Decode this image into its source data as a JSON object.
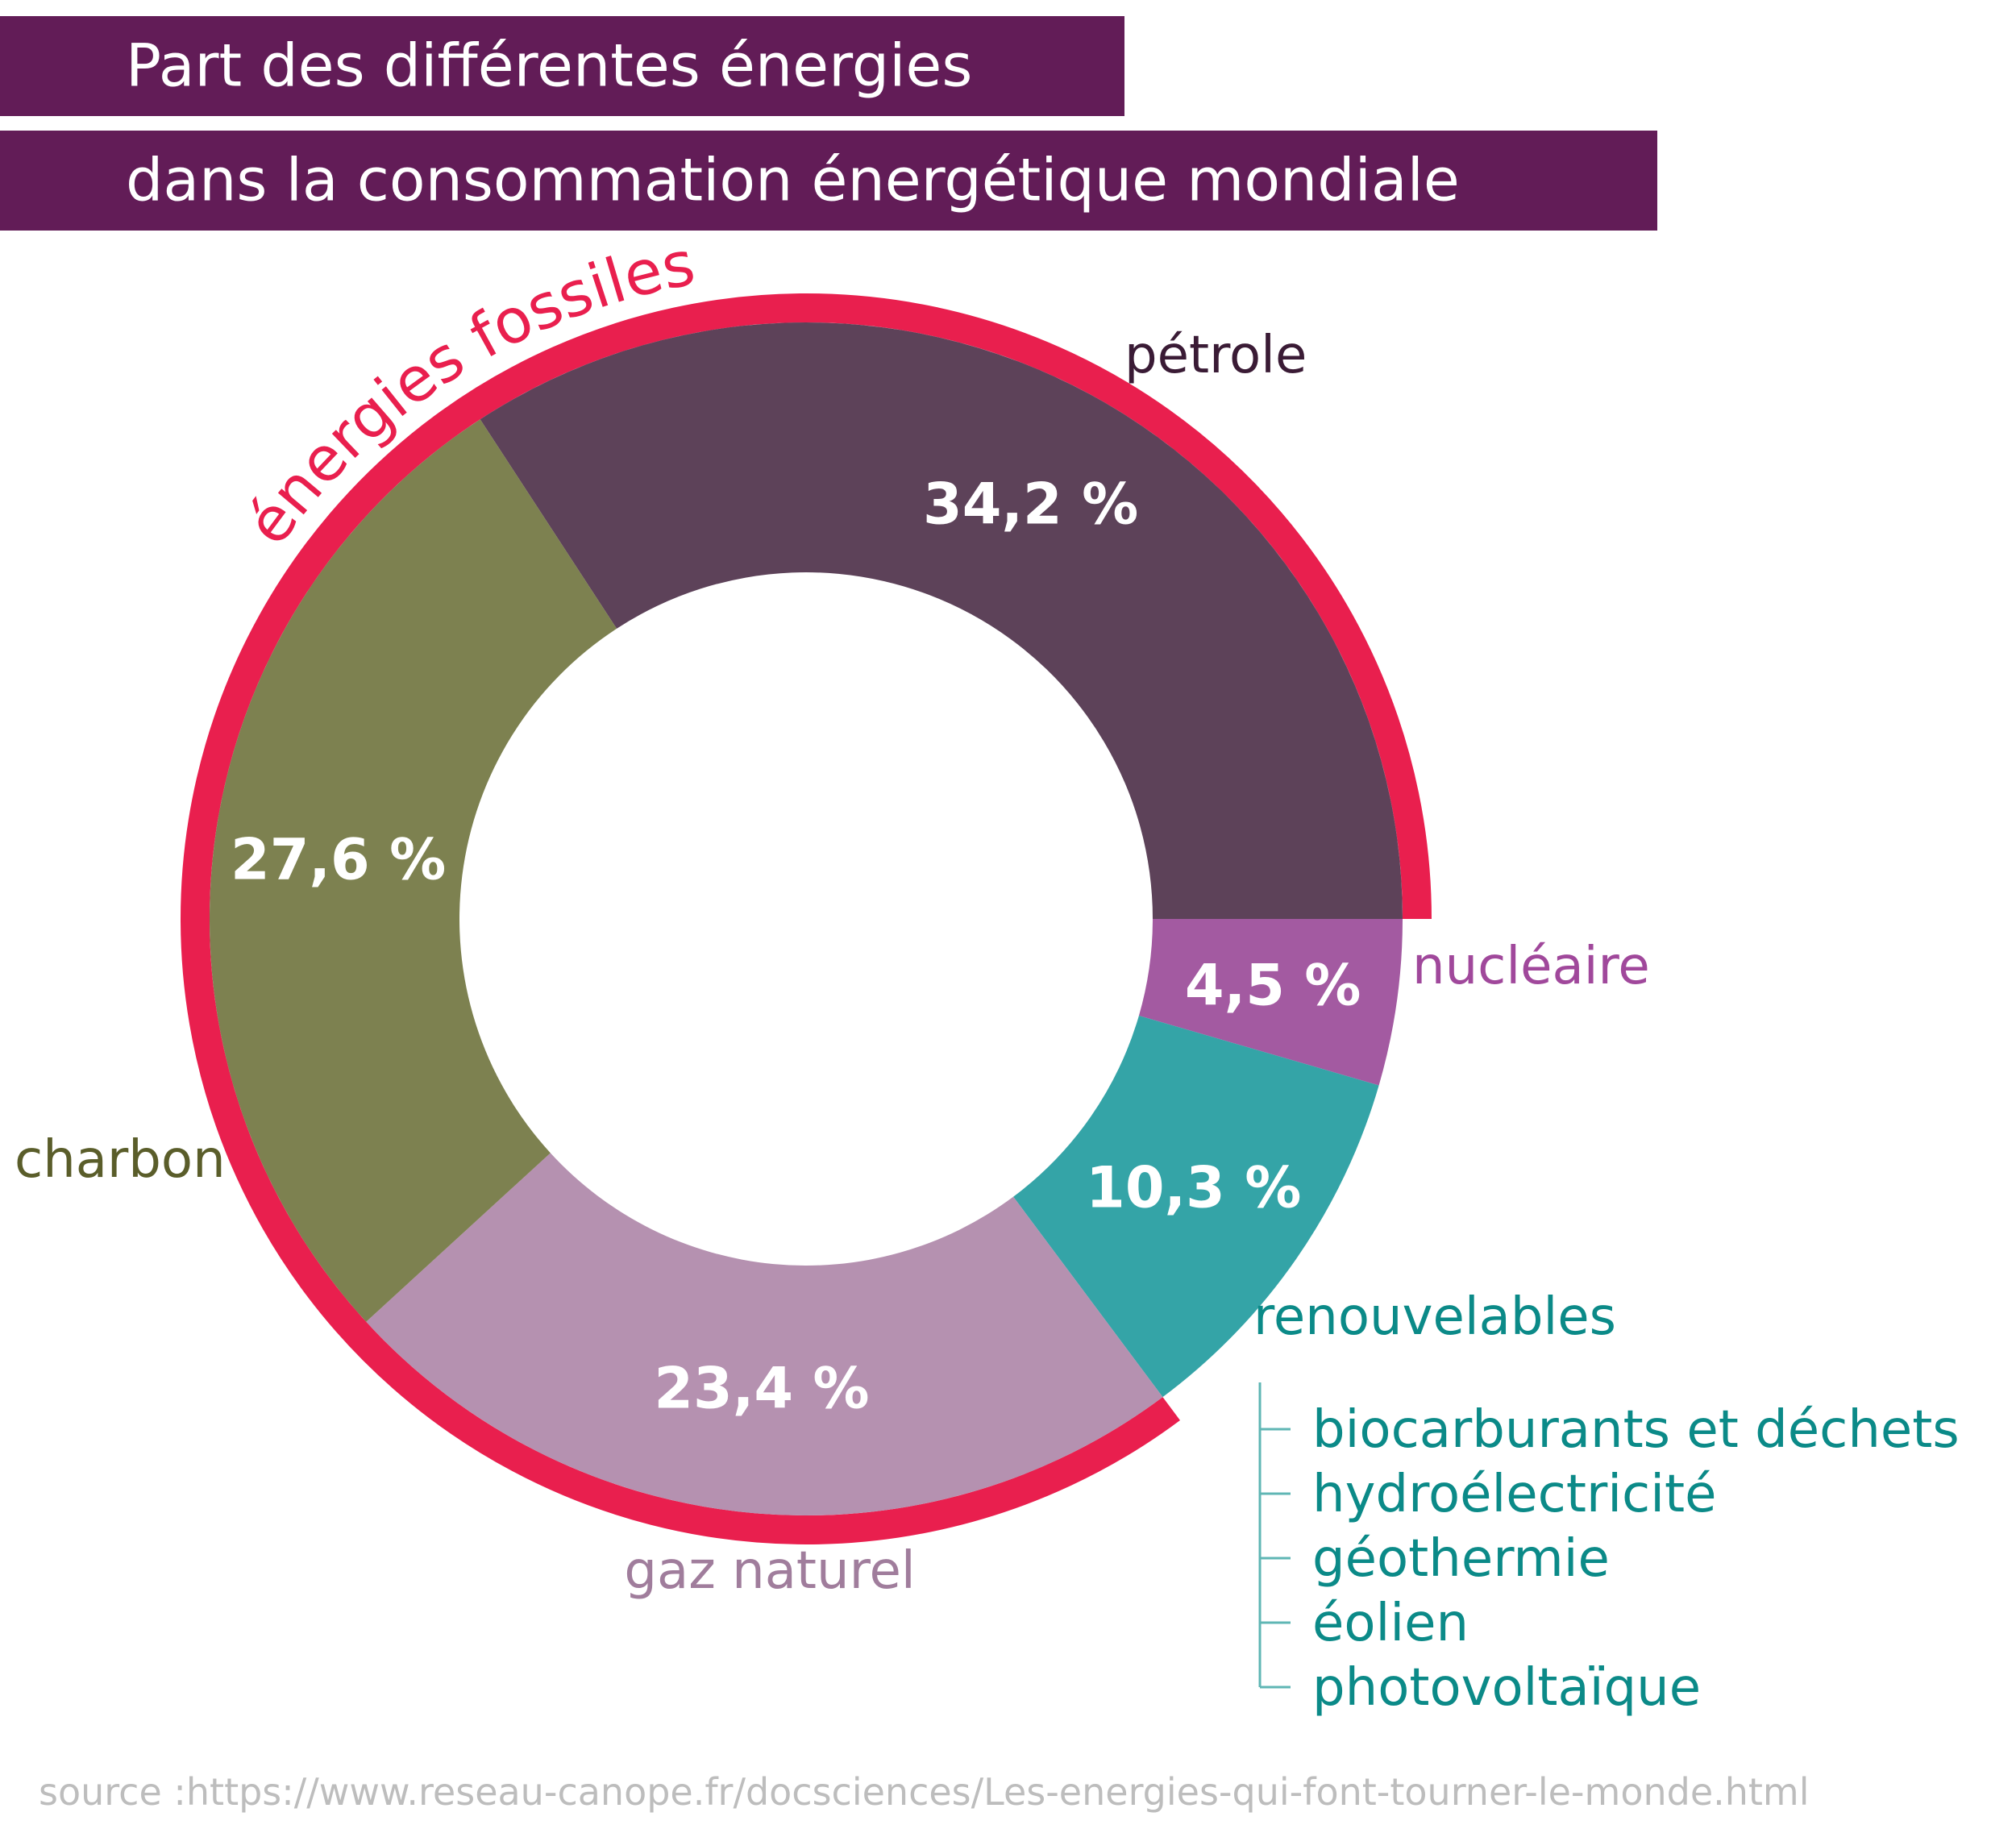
{
  "title": {
    "line1": "Part des différentes énergies",
    "line2": "dans la consommation énergétique mondiale"
  },
  "chart_data": {
    "type": "pie",
    "title": "Part des différentes énergies dans la consommation énergétique mondiale",
    "slices": [
      {
        "label": "pétrole",
        "value": 34.2,
        "value_label": "34,2 %",
        "color": "#5d4259",
        "label_color": "#3a1b35"
      },
      {
        "label": "nucléaire",
        "value": 4.5,
        "value_label": "4,5 %",
        "color": "#a35aa1",
        "label_color": "#a0489b"
      },
      {
        "label": "renouvelables",
        "value": 10.3,
        "value_label": "10,3 %",
        "color": "#34a4a7",
        "label_color": "#0b8a88"
      },
      {
        "label": "gaz naturel",
        "value": 23.4,
        "value_label": "23,4 %",
        "color": "#b591b0",
        "label_color": "#a07d9c"
      },
      {
        "label": "charbon",
        "value": 27.6,
        "value_label": "27,6 %",
        "color": "#7d8150",
        "label_color": "#5a5d2a"
      }
    ],
    "group": {
      "label": "énergies fossiles",
      "members": [
        "pétrole",
        "gaz naturel",
        "charbon"
      ],
      "color": "#e91f4e"
    },
    "renewable_sources": [
      "biocarburants et déchets",
      "hydroélectricité",
      "géothermie",
      "éolien",
      "photovoltaïque"
    ]
  },
  "source": "source :https://www.reseau-canope.fr/docsciences/Les-energies-qui-font-tourner-le-monde.html"
}
